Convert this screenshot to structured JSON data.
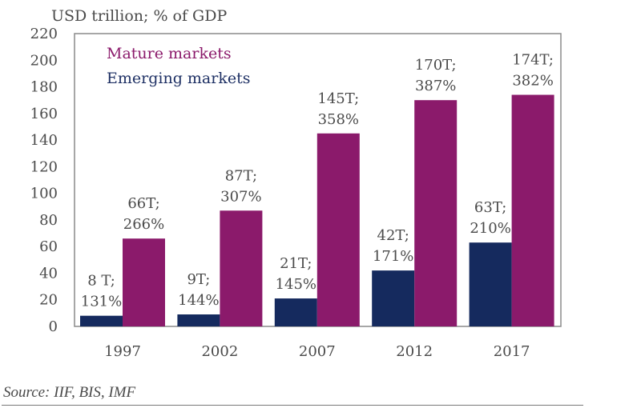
{
  "chart_data": {
    "type": "bar",
    "title": "",
    "unit_label": "USD trillion; % of GDP",
    "xlabel": "",
    "ylabel": "USD trillion",
    "ylim": [
      0,
      220
    ],
    "yticks": [
      0,
      20,
      40,
      60,
      80,
      100,
      120,
      140,
      160,
      180,
      200,
      220
    ],
    "grid": false,
    "legend_position": "top-left",
    "categories": [
      "1997",
      "2002",
      "2007",
      "2012",
      "2017"
    ],
    "series": [
      {
        "name": "Emerging markets",
        "color": "#152a5e",
        "values": [
          8,
          9,
          21,
          42,
          63
        ],
        "labels": [
          [
            "8 T;",
            "131%"
          ],
          [
            "9T;",
            "144%"
          ],
          [
            "21T;",
            "145%"
          ],
          [
            "42T;",
            "171%"
          ],
          [
            "63T;",
            "210%"
          ]
        ]
      },
      {
        "name": "Mature markets",
        "color": "#8b1a6b",
        "values": [
          66,
          87,
          145,
          170,
          174
        ],
        "labels": [
          [
            "66T;",
            "266%"
          ],
          [
            "87T;",
            "307%"
          ],
          [
            "145T;",
            "358%"
          ],
          [
            "170T;",
            "387%"
          ],
          [
            "174T;",
            "382%"
          ]
        ]
      }
    ],
    "source": "Source: IIF, BIS, IMF"
  }
}
